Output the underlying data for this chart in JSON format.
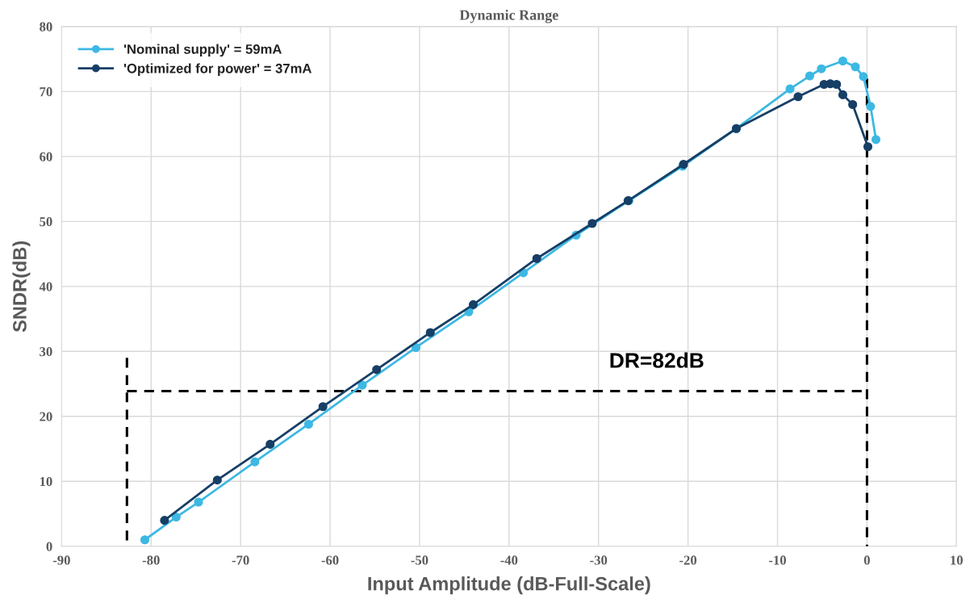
{
  "chart_data": {
    "type": "line",
    "title": "Dynamic Range",
    "xlabel": "Input Amplitude (dB-Full-Scale)",
    "ylabel": "SNDR(dB)",
    "xlim": [
      -90,
      10
    ],
    "xticks": [
      -90,
      -80,
      -70,
      -60,
      -50,
      -40,
      -30,
      -20,
      -10,
      0,
      10
    ],
    "ylim": [
      0,
      80
    ],
    "yticks": [
      0,
      10,
      20,
      30,
      40,
      50,
      60,
      70,
      80
    ],
    "grid": true,
    "legend": "top left",
    "marker": "circle",
    "series": [
      {
        "name": "'Nominal supply' = 59mA",
        "color": "#3db8e3",
        "x": [
          -80.7,
          -77.2,
          -74.7,
          -68.4,
          -62.4,
          -56.4,
          -50.4,
          -44.5,
          -38.4,
          -32.5,
          -26.6,
          -20.6,
          -14.6,
          -8.6,
          -6.4,
          -5.1,
          -2.7,
          -1.3,
          -0.4,
          0.4,
          1.0
        ],
        "values": [
          1.0,
          4.5,
          6.8,
          13.0,
          18.8,
          24.8,
          30.6,
          36.1,
          42.1,
          47.9,
          53.2,
          58.5,
          64.3,
          70.4,
          72.4,
          73.5,
          74.7,
          73.8,
          72.3,
          67.7,
          62.6
        ]
      },
      {
        "name": "'Optimized for power' = 37mA",
        "color": "#173f66",
        "x": [
          -78.5,
          -72.6,
          -66.7,
          -60.8,
          -54.8,
          -48.8,
          -44.0,
          -36.9,
          -30.7,
          -26.7,
          -20.5,
          -14.6,
          -7.7,
          -4.8,
          -4.1,
          -3.4,
          -2.7,
          -1.6,
          0.1
        ],
        "values": [
          4.0,
          10.2,
          15.7,
          21.5,
          27.2,
          32.9,
          37.2,
          44.3,
          49.7,
          53.2,
          58.8,
          64.3,
          69.2,
          71.1,
          71.2,
          71.1,
          69.5,
          68.0,
          61.5
        ]
      },
      {
        "color": "#000000",
        "line_style": "dashed",
        "marker": "none",
        "x": [
          -82.7,
          -82.7
        ],
        "values": [
          29,
          0
        ]
      },
      {
        "color": "#000000",
        "line_style": "dashed",
        "marker": "none",
        "x": [
          0,
          0
        ],
        "values": [
          72,
          0
        ]
      },
      {
        "color": "#000000",
        "line_style": "dashed",
        "marker": "none",
        "x": [
          -82.7,
          0
        ],
        "values": [
          23.9,
          23.9
        ]
      }
    ],
    "annotations": [
      "DR=82dB"
    ]
  }
}
